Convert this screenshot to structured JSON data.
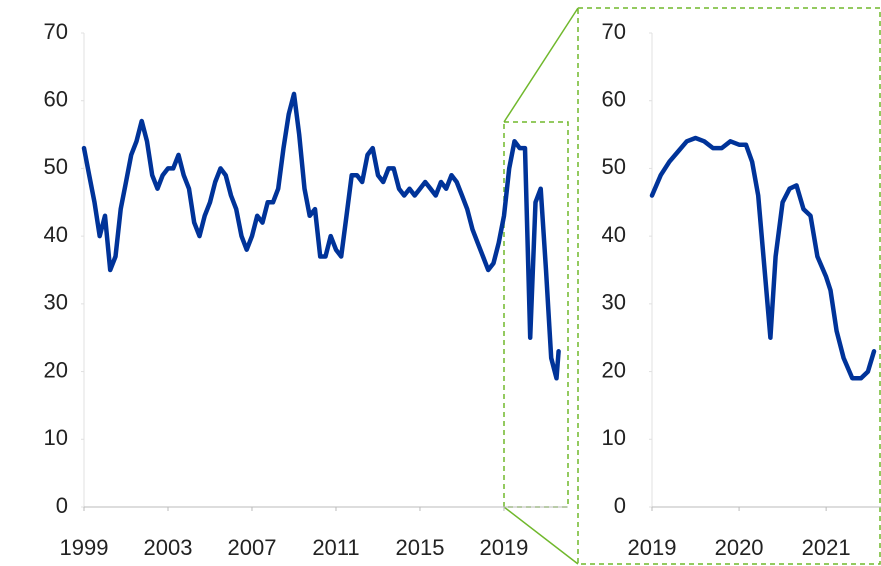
{
  "chart_data": [
    {
      "type": "line",
      "color": "#003399",
      "x": [
        1999.0,
        1999.25,
        1999.5,
        1999.75,
        2000.0,
        2000.25,
        2000.5,
        2000.75,
        2001.0,
        2001.25,
        2001.5,
        2001.75,
        2002.0,
        2002.25,
        2002.5,
        2002.75,
        2003.0,
        2003.25,
        2003.5,
        2003.75,
        2004.0,
        2004.25,
        2004.5,
        2004.75,
        2005.0,
        2005.25,
        2005.5,
        2005.75,
        2006.0,
        2006.25,
        2006.5,
        2006.75,
        2007.0,
        2007.25,
        2007.5,
        2007.75,
        2008.0,
        2008.25,
        2008.5,
        2008.75,
        2009.0,
        2009.25,
        2009.5,
        2009.75,
        2010.0,
        2010.25,
        2010.5,
        2010.75,
        2011.0,
        2011.25,
        2011.5,
        2011.75,
        2012.0,
        2012.25,
        2012.5,
        2012.75,
        2013.0,
        2013.25,
        2013.5,
        2013.75,
        2014.0,
        2014.25,
        2014.5,
        2014.75,
        2015.0,
        2015.25,
        2015.5,
        2015.75,
        2016.0,
        2016.25,
        2016.5,
        2016.75,
        2017.0,
        2017.25,
        2017.5,
        2017.75,
        2018.0,
        2018.25,
        2018.5,
        2018.75,
        2019.0,
        2019.25,
        2019.5,
        2019.75,
        2020.0,
        2020.25,
        2020.5,
        2020.75,
        2021.0,
        2021.25,
        2021.5,
        2021.6
      ],
      "values": [
        53,
        49,
        45,
        40,
        43,
        35,
        37,
        44,
        48,
        52,
        54,
        57,
        54,
        49,
        47,
        49,
        50,
        50,
        52,
        49,
        47,
        42,
        40,
        43,
        45,
        48,
        50,
        49,
        46,
        44,
        40,
        38,
        40,
        43,
        42,
        45,
        45,
        47,
        53,
        58,
        61,
        55,
        47,
        43,
        44,
        37,
        37,
        40,
        38,
        37,
        43,
        49,
        49,
        48,
        52,
        53,
        49,
        48,
        50,
        50,
        47,
        46,
        47,
        46,
        47,
        48,
        47,
        46,
        48,
        47,
        49,
        48,
        46,
        44,
        41,
        39,
        37,
        35,
        36,
        39,
        43,
        50,
        54,
        53,
        53,
        25,
        45,
        47,
        35,
        22,
        19,
        23
      ],
      "xlim": [
        1999,
        2022.05
      ],
      "xticks": [
        1999,
        2003,
        2007,
        2011,
        2015,
        2019
      ],
      "ylim": [
        0,
        70
      ],
      "yticks": [
        0,
        10,
        20,
        30,
        40,
        50,
        60,
        70
      ]
    },
    {
      "type": "line",
      "color": "#003399",
      "x": [
        2019.0,
        2019.1,
        2019.2,
        2019.3,
        2019.4,
        2019.5,
        2019.6,
        2019.7,
        2019.8,
        2019.9,
        2020.0,
        2020.08,
        2020.15,
        2020.22,
        2020.3,
        2020.36,
        2020.42,
        2020.5,
        2020.58,
        2020.66,
        2020.74,
        2020.82,
        2020.9,
        2021.0,
        2021.05,
        2021.12,
        2021.2,
        2021.3,
        2021.4,
        2021.48,
        2021.55
      ],
      "values": [
        46,
        49,
        51,
        52.5,
        54,
        54.5,
        54,
        53,
        53,
        54,
        53.5,
        53.5,
        51,
        46,
        34,
        25,
        37,
        45,
        47,
        47.5,
        44,
        43,
        37,
        34,
        32,
        26,
        22,
        19,
        19,
        20,
        23
      ],
      "xlim": [
        2019,
        2021.63
      ],
      "xticks": [
        2019,
        2020,
        2021
      ],
      "ylim": [
        0,
        70
      ],
      "yticks": [
        0,
        10,
        20,
        30,
        40,
        50,
        60,
        70
      ]
    }
  ]
}
